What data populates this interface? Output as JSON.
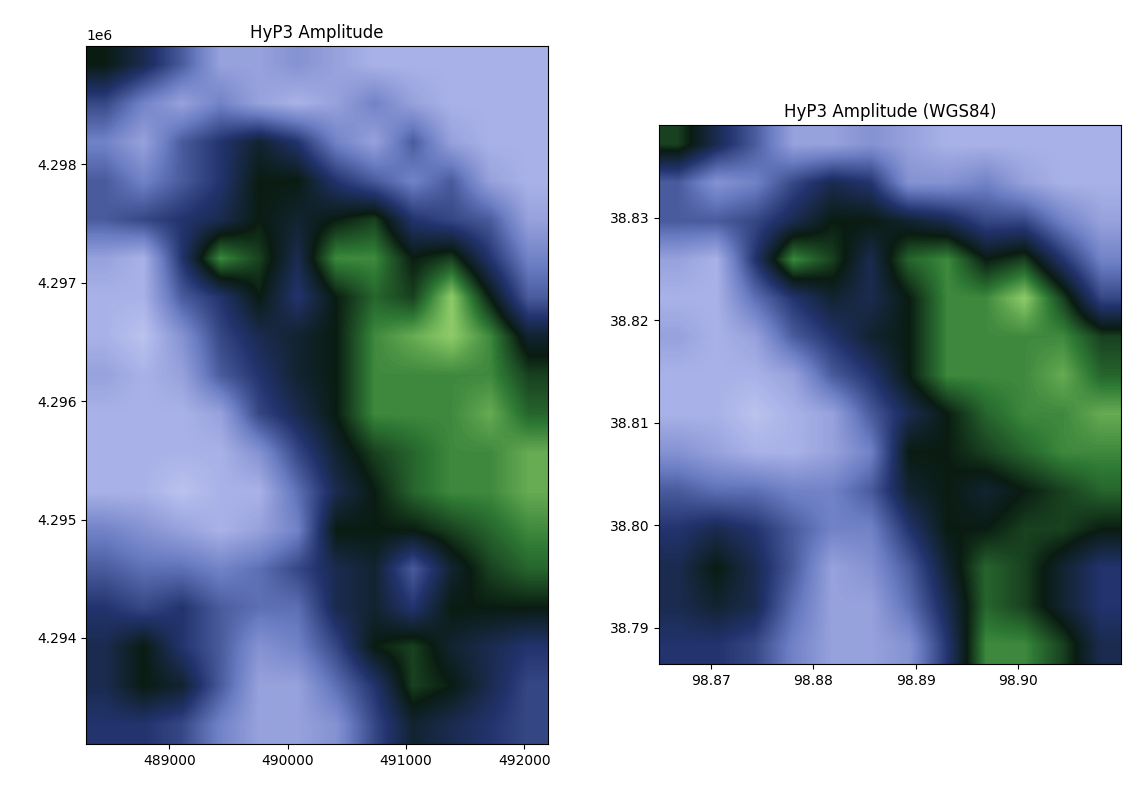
{
  "chart_data": [
    {
      "type": "heatmap",
      "title": "HyP3 Amplitude",
      "xlim": [
        488300,
        492200
      ],
      "ylim": [
        4293100,
        4299000
      ],
      "xticks": [
        489000,
        490000,
        491000,
        492000
      ],
      "yticks": [
        {
          "value": 4294000,
          "label": "4.294"
        },
        {
          "value": 4295000,
          "label": "4.295"
        },
        {
          "value": 4296000,
          "label": "4.296"
        },
        {
          "value": 4297000,
          "label": "4.297"
        },
        {
          "value": 4298000,
          "label": "4.298"
        }
      ],
      "y_offset_text": "1e6",
      "value_range": [
        0,
        1
      ],
      "cells": [
        [
          0.35,
          0.45,
          0.6,
          0.8,
          0.8,
          0.75,
          0.8,
          0.85,
          0.85,
          0.85,
          0.85,
          0.85
        ],
        [
          0.55,
          0.7,
          0.8,
          0.7,
          0.8,
          0.85,
          0.8,
          0.7,
          0.8,
          0.85,
          0.85,
          0.85
        ],
        [
          0.7,
          0.8,
          0.6,
          0.5,
          0.4,
          0.5,
          0.7,
          0.8,
          0.6,
          0.8,
          0.85,
          0.85
        ],
        [
          0.6,
          0.7,
          0.6,
          0.5,
          0.35,
          0.35,
          0.5,
          0.6,
          0.7,
          0.6,
          0.8,
          0.85
        ],
        [
          0.6,
          0.55,
          0.5,
          0.45,
          0.35,
          0.4,
          0.35,
          0.3,
          0.5,
          0.55,
          0.6,
          0.8
        ],
        [
          0.8,
          0.85,
          0.5,
          0.2,
          0.3,
          0.45,
          0.2,
          0.2,
          0.35,
          0.3,
          0.5,
          0.7
        ],
        [
          0.85,
          0.85,
          0.6,
          0.5,
          0.35,
          0.5,
          0.35,
          0.25,
          0.3,
          0.1,
          0.35,
          0.6
        ],
        [
          0.85,
          0.9,
          0.75,
          0.55,
          0.45,
          0.4,
          0.35,
          0.2,
          0.15,
          0.1,
          0.2,
          0.4
        ],
        [
          0.8,
          0.85,
          0.8,
          0.6,
          0.5,
          0.4,
          0.35,
          0.2,
          0.2,
          0.2,
          0.2,
          0.3
        ],
        [
          0.85,
          0.85,
          0.85,
          0.8,
          0.55,
          0.45,
          0.35,
          0.2,
          0.2,
          0.2,
          0.15,
          0.25
        ],
        [
          0.85,
          0.85,
          0.85,
          0.85,
          0.75,
          0.55,
          0.4,
          0.3,
          0.25,
          0.2,
          0.2,
          0.15
        ],
        [
          0.85,
          0.85,
          0.9,
          0.85,
          0.85,
          0.65,
          0.45,
          0.35,
          0.25,
          0.2,
          0.2,
          0.15
        ],
        [
          0.7,
          0.75,
          0.8,
          0.85,
          0.8,
          0.7,
          0.35,
          0.35,
          0.35,
          0.3,
          0.25,
          0.2
        ],
        [
          0.6,
          0.65,
          0.65,
          0.7,
          0.65,
          0.55,
          0.45,
          0.4,
          0.6,
          0.4,
          0.3,
          0.25
        ],
        [
          0.5,
          0.55,
          0.5,
          0.6,
          0.65,
          0.65,
          0.45,
          0.4,
          0.5,
          0.35,
          0.35,
          0.35
        ],
        [
          0.45,
          0.35,
          0.5,
          0.6,
          0.75,
          0.7,
          0.55,
          0.35,
          0.3,
          0.4,
          0.45,
          0.5
        ],
        [
          0.45,
          0.35,
          0.4,
          0.6,
          0.8,
          0.8,
          0.65,
          0.5,
          0.3,
          0.35,
          0.45,
          0.55
        ],
        [
          0.5,
          0.5,
          0.55,
          0.7,
          0.8,
          0.8,
          0.75,
          0.55,
          0.4,
          0.45,
          0.5,
          0.55
        ]
      ]
    },
    {
      "type": "heatmap",
      "title": "HyP3 Amplitude (WGS84)",
      "xlim": [
        98.865,
        98.91
      ],
      "ylim": [
        38.7865,
        38.839
      ],
      "xticks": [
        98.87,
        98.88,
        98.89,
        {
          "value": 98.9,
          "label": "98.90"
        }
      ],
      "yticks": [
        38.79,
        {
          "value": 38.8,
          "label": "38.80"
        },
        38.81,
        38.82,
        38.83
      ],
      "value_range": [
        0,
        1
      ],
      "cells": [
        [
          0.3,
          0.45,
          0.6,
          0.8,
          0.8,
          0.75,
          0.8,
          0.85,
          0.85,
          0.85,
          0.85,
          0.85
        ],
        [
          0.6,
          0.75,
          0.7,
          0.55,
          0.45,
          0.5,
          0.75,
          0.75,
          0.7,
          0.8,
          0.85,
          0.85
        ],
        [
          0.6,
          0.6,
          0.55,
          0.45,
          0.35,
          0.35,
          0.4,
          0.45,
          0.55,
          0.55,
          0.7,
          0.8
        ],
        [
          0.8,
          0.85,
          0.5,
          0.2,
          0.3,
          0.45,
          0.25,
          0.2,
          0.35,
          0.3,
          0.5,
          0.7
        ],
        [
          0.85,
          0.85,
          0.65,
          0.5,
          0.4,
          0.45,
          0.35,
          0.2,
          0.2,
          0.1,
          0.3,
          0.55
        ],
        [
          0.8,
          0.85,
          0.8,
          0.6,
          0.5,
          0.4,
          0.35,
          0.2,
          0.2,
          0.2,
          0.2,
          0.3
        ],
        [
          0.85,
          0.85,
          0.85,
          0.8,
          0.6,
          0.5,
          0.35,
          0.2,
          0.2,
          0.2,
          0.15,
          0.25
        ],
        [
          0.85,
          0.85,
          0.9,
          0.85,
          0.8,
          0.6,
          0.45,
          0.35,
          0.25,
          0.2,
          0.2,
          0.15
        ],
        [
          0.75,
          0.8,
          0.85,
          0.85,
          0.8,
          0.7,
          0.35,
          0.35,
          0.3,
          0.25,
          0.2,
          0.2
        ],
        [
          0.6,
          0.65,
          0.65,
          0.7,
          0.7,
          0.6,
          0.4,
          0.35,
          0.4,
          0.35,
          0.3,
          0.25
        ],
        [
          0.5,
          0.45,
          0.5,
          0.6,
          0.7,
          0.7,
          0.5,
          0.35,
          0.35,
          0.3,
          0.3,
          0.35
        ],
        [
          0.45,
          0.35,
          0.45,
          0.6,
          0.8,
          0.75,
          0.6,
          0.4,
          0.25,
          0.3,
          0.4,
          0.5
        ],
        [
          0.45,
          0.4,
          0.45,
          0.65,
          0.8,
          0.8,
          0.65,
          0.45,
          0.25,
          0.3,
          0.4,
          0.5
        ],
        [
          0.5,
          0.5,
          0.55,
          0.7,
          0.8,
          0.8,
          0.75,
          0.5,
          0.2,
          0.2,
          0.3,
          0.45
        ]
      ]
    }
  ]
}
